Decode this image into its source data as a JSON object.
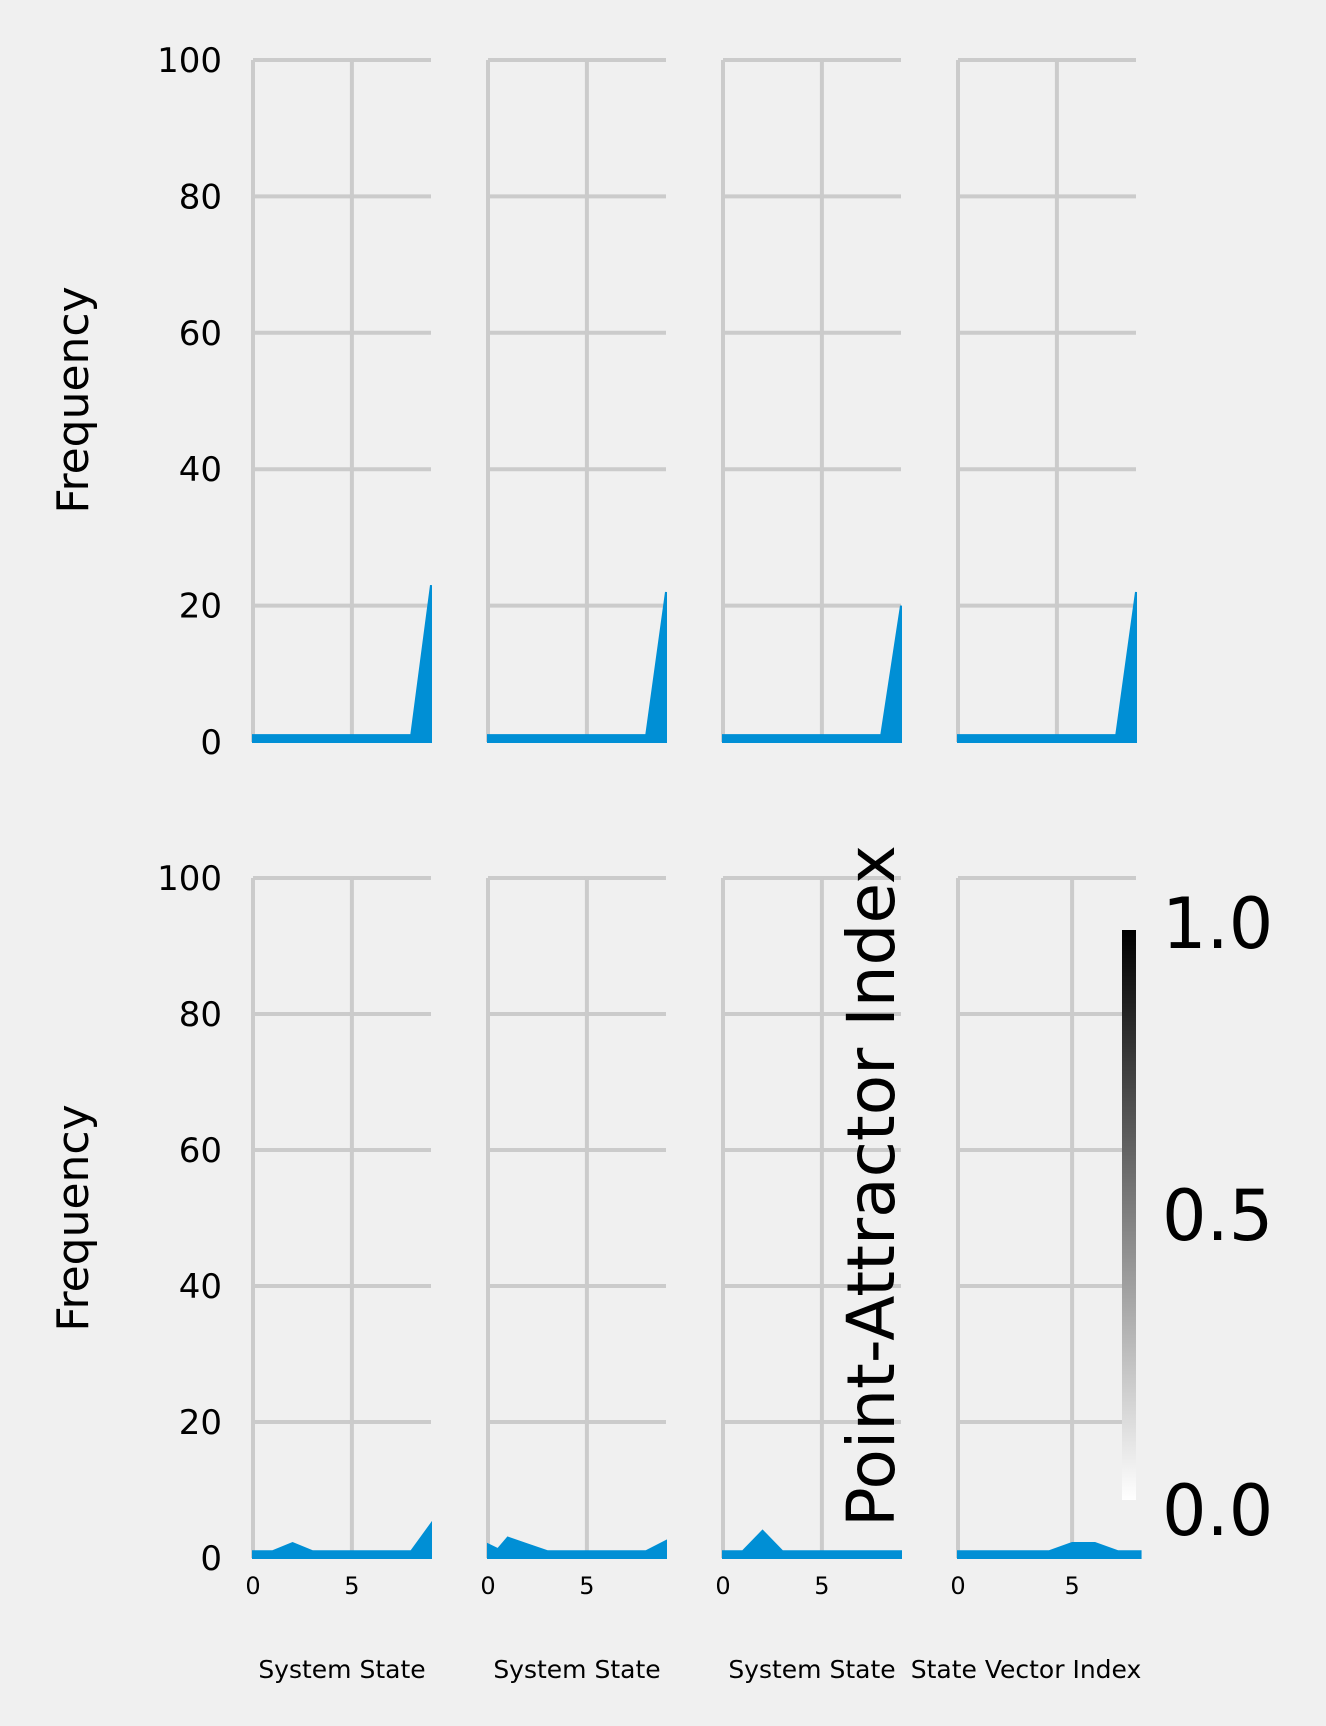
{
  "chart_data": {
    "type": "area",
    "layout": {
      "rows": 2,
      "cols": 4
    },
    "colors": {
      "background": "#f0f0f0",
      "grid": "#cbcbcb",
      "fill": "#008fd5",
      "text": "#000000"
    },
    "grid": true,
    "ylabel": "Frequency",
    "ylim": [
      0,
      100
    ],
    "yticks": [
      0,
      20,
      40,
      60,
      80,
      100
    ],
    "xticks": [
      0,
      5
    ],
    "top_row": [
      {
        "x": [
          0,
          1,
          2,
          3,
          4,
          5,
          6,
          7,
          8,
          9
        ],
        "values": [
          1,
          1,
          1,
          1,
          1,
          1,
          1,
          1,
          1,
          23
        ],
        "xlim": [
          0,
          9
        ],
        "xlabel": ""
      },
      {
        "x": [
          0,
          1,
          2,
          3,
          4,
          5,
          6,
          7,
          8,
          9
        ],
        "values": [
          1,
          1,
          1,
          1,
          1,
          1,
          1,
          1,
          1,
          22
        ],
        "xlim": [
          0,
          9
        ],
        "xlabel": ""
      },
      {
        "x": [
          0,
          1,
          2,
          3,
          4,
          5,
          6,
          7,
          8,
          9
        ],
        "values": [
          1,
          1,
          1,
          1,
          1,
          1,
          1,
          1,
          1,
          20
        ],
        "xlim": [
          0,
          9
        ],
        "xlabel": ""
      },
      {
        "x": [
          0,
          1,
          2,
          3,
          4,
          5,
          6,
          7,
          8,
          9
        ],
        "values": [
          1,
          1,
          1,
          1,
          1,
          1,
          1,
          1,
          1,
          22
        ],
        "xlim": [
          0,
          9
        ],
        "xlabel": ""
      }
    ],
    "bottom_row": [
      {
        "x": [
          0,
          1,
          2,
          3,
          4,
          5,
          6,
          7,
          8,
          9
        ],
        "values": [
          1,
          1,
          2.2,
          1,
          1,
          1,
          1,
          1,
          1,
          5
        ],
        "xlim": [
          0,
          9
        ],
        "xlabel": "System State"
      },
      {
        "x": [
          0,
          0.5,
          1,
          2,
          3,
          4,
          5,
          6,
          7,
          8,
          9
        ],
        "values": [
          2,
          1.3,
          3,
          2,
          1,
          1,
          1,
          1,
          1,
          1,
          2.5
        ],
        "xlim": [
          0,
          9
        ],
        "xlabel": "System State"
      },
      {
        "x": [
          0,
          1,
          2,
          3,
          4,
          5,
          6,
          7,
          8,
          9
        ],
        "values": [
          1,
          1,
          4,
          1,
          1,
          1,
          1,
          1,
          1,
          1
        ],
        "xlim": [
          0,
          9
        ],
        "xlabel": "System State"
      },
      {
        "x": [
          0,
          1,
          2,
          3,
          4,
          5,
          6,
          7,
          8
        ],
        "values": [
          1,
          1,
          1,
          1,
          1,
          2.2,
          2.2,
          1,
          1
        ],
        "xlim": [
          0,
          7.8
        ],
        "xlabel": "State Vector Index"
      }
    ],
    "colorbar": {
      "label": "Point-Attractor Index",
      "ticks": [
        "0.0",
        "0.5",
        "1.0"
      ],
      "range": [
        0,
        1
      ]
    }
  }
}
